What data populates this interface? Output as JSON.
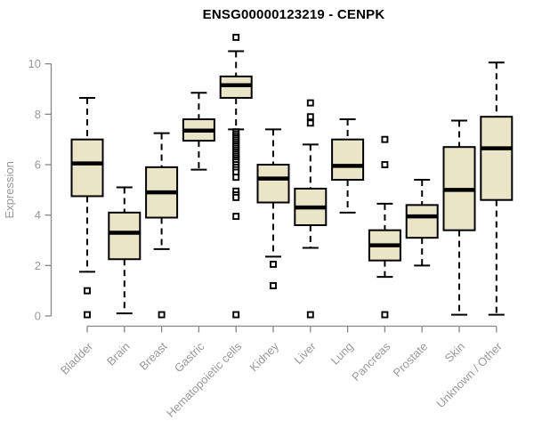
{
  "chart_data": {
    "type": "boxplot",
    "title": "ENSG00000123219 - CENPK",
    "ylabel": "Expression",
    "ylim": [
      0,
      11.4
    ],
    "yticks": [
      0,
      2,
      4,
      6,
      8,
      10
    ],
    "grid": false,
    "legend": null,
    "colors": {
      "box_fill": "#EBE5C7",
      "box_stroke": "#000000",
      "median": "#000000",
      "whisker": "#000000",
      "outlier_stroke": "#000000",
      "outlier_fill": "#ffffff",
      "axis": "#878787",
      "labels": "#999999",
      "title": "#000000",
      "background": "#ffffff"
    },
    "categories": [
      "Bladder",
      "Brain",
      "Breast",
      "Gastric",
      "Hematopoietic cells",
      "Kidney",
      "Liver",
      "Lung",
      "Pancreas",
      "Prostate",
      "Skin",
      "Unknown / Other"
    ],
    "series": [
      {
        "category": "Bladder",
        "whisker_low": 1.75,
        "q1": 4.75,
        "median": 6.05,
        "q3": 7.0,
        "whisker_high": 8.65,
        "outliers": [
          1.0,
          0.05
        ]
      },
      {
        "category": "Brain",
        "whisker_low": 0.1,
        "q1": 2.25,
        "median": 3.3,
        "q3": 4.1,
        "whisker_high": 5.1,
        "outliers": []
      },
      {
        "category": "Breast",
        "whisker_low": 2.65,
        "q1": 3.9,
        "median": 4.9,
        "q3": 5.9,
        "whisker_high": 7.25,
        "outliers": [
          0.05
        ]
      },
      {
        "category": "Gastric",
        "whisker_low": 5.8,
        "q1": 6.95,
        "median": 7.35,
        "q3": 7.8,
        "whisker_high": 8.85,
        "outliers": []
      },
      {
        "category": "Hematopoietic cells",
        "whisker_low": 7.4,
        "q1": 8.65,
        "median": 9.15,
        "q3": 9.5,
        "whisker_high": 10.5,
        "outliers": [
          11.05,
          7.3,
          7.22,
          7.14,
          7.06,
          6.98,
          6.9,
          6.82,
          6.74,
          6.66,
          6.58,
          6.5,
          6.42,
          6.34,
          6.26,
          6.18,
          6.1,
          6.0,
          5.9,
          5.8,
          5.7,
          5.5,
          4.95,
          4.8,
          4.7,
          3.95,
          0.05
        ]
      },
      {
        "category": "Kidney",
        "whisker_low": 2.35,
        "q1": 4.5,
        "median": 5.45,
        "q3": 6.0,
        "whisker_high": 7.4,
        "outliers": [
          2.05,
          1.2
        ]
      },
      {
        "category": "Liver",
        "whisker_low": 2.7,
        "q1": 3.6,
        "median": 4.3,
        "q3": 5.05,
        "whisker_high": 6.8,
        "outliers": [
          8.45,
          7.9,
          7.65,
          0.05
        ]
      },
      {
        "category": "Lung",
        "whisker_low": 4.1,
        "q1": 5.4,
        "median": 5.95,
        "q3": 7.0,
        "whisker_high": 7.8,
        "outliers": []
      },
      {
        "category": "Pancreas",
        "whisker_low": 1.55,
        "q1": 2.2,
        "median": 2.8,
        "q3": 3.4,
        "whisker_high": 4.45,
        "outliers": [
          7.0,
          6.0,
          0.05
        ]
      },
      {
        "category": "Prostate",
        "whisker_low": 2.0,
        "q1": 3.1,
        "median": 3.95,
        "q3": 4.4,
        "whisker_high": 5.4,
        "outliers": []
      },
      {
        "category": "Skin",
        "whisker_low": 0.05,
        "q1": 3.4,
        "median": 5.0,
        "q3": 6.7,
        "whisker_high": 7.75,
        "outliers": []
      },
      {
        "category": "Unknown / Other",
        "whisker_low": 0.05,
        "q1": 4.6,
        "median": 6.65,
        "q3": 7.9,
        "whisker_high": 10.05,
        "outliers": []
      }
    ]
  }
}
